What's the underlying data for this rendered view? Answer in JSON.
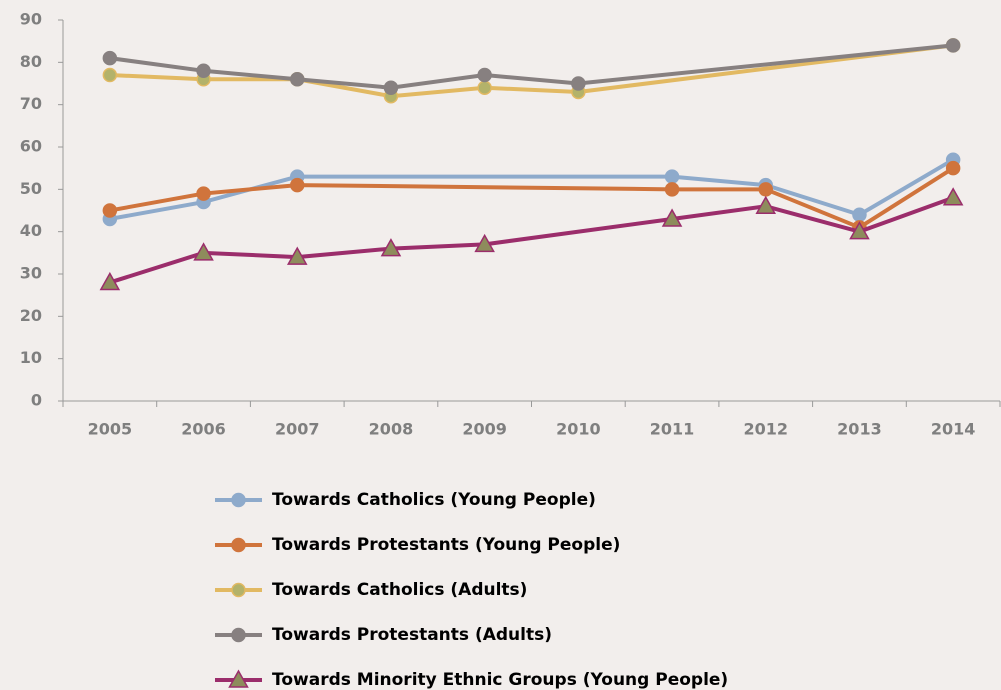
{
  "chart_data": {
    "type": "line",
    "xlim": [
      2004.5,
      2014.5
    ],
    "xticks": [
      2005,
      2006,
      2007,
      2008,
      2009,
      2010,
      2011,
      2012,
      2013,
      2014
    ],
    "ylim": [
      0,
      90
    ],
    "yticks": [
      0,
      10,
      20,
      30,
      40,
      50,
      60,
      70,
      80,
      90
    ],
    "grid": false,
    "legend": "bottom",
    "series": [
      {
        "name": "Towards Catholics (Young People)",
        "color": "#8eaacb",
        "marker": "circle",
        "marker_fill": "#8eaacb",
        "x": [
          2005,
          2006,
          2007,
          2011,
          2012,
          2013,
          2014
        ],
        "values": [
          43,
          47,
          53,
          53,
          51,
          44,
          57
        ]
      },
      {
        "name": "Towards Protestants (Young People)",
        "color": "#d0743c",
        "marker": "circle",
        "marker_fill": "#d0743c",
        "x": [
          2005,
          2006,
          2007,
          2011,
          2012,
          2013,
          2014
        ],
        "values": [
          45,
          49,
          51,
          50,
          50,
          41,
          55
        ]
      },
      {
        "name": "Towards Catholics (Adults)",
        "color": "#e2b962",
        "marker": "circle",
        "marker_fill": "#b3b26a",
        "x": [
          2005,
          2006,
          2007,
          2008,
          2009,
          2010,
          2014
        ],
        "values": [
          77,
          76,
          76,
          72,
          74,
          73,
          84
        ]
      },
      {
        "name": "Towards Protestants (Adults)",
        "color": "#878080",
        "marker": "circle",
        "marker_fill": "#878080",
        "x": [
          2005,
          2006,
          2007,
          2008,
          2009,
          2010,
          2014
        ],
        "values": [
          81,
          78,
          76,
          74,
          77,
          75,
          84
        ]
      },
      {
        "name": "Towards Minority Ethnic Groups (Young People)",
        "color": "#9b2d6b",
        "marker": "triangle",
        "marker_fill": "#8e8c5c",
        "x": [
          2005,
          2006,
          2007,
          2008,
          2009,
          2011,
          2012,
          2013,
          2014
        ],
        "values": [
          28,
          35,
          34,
          36,
          37,
          43,
          46,
          40,
          48
        ]
      }
    ]
  }
}
